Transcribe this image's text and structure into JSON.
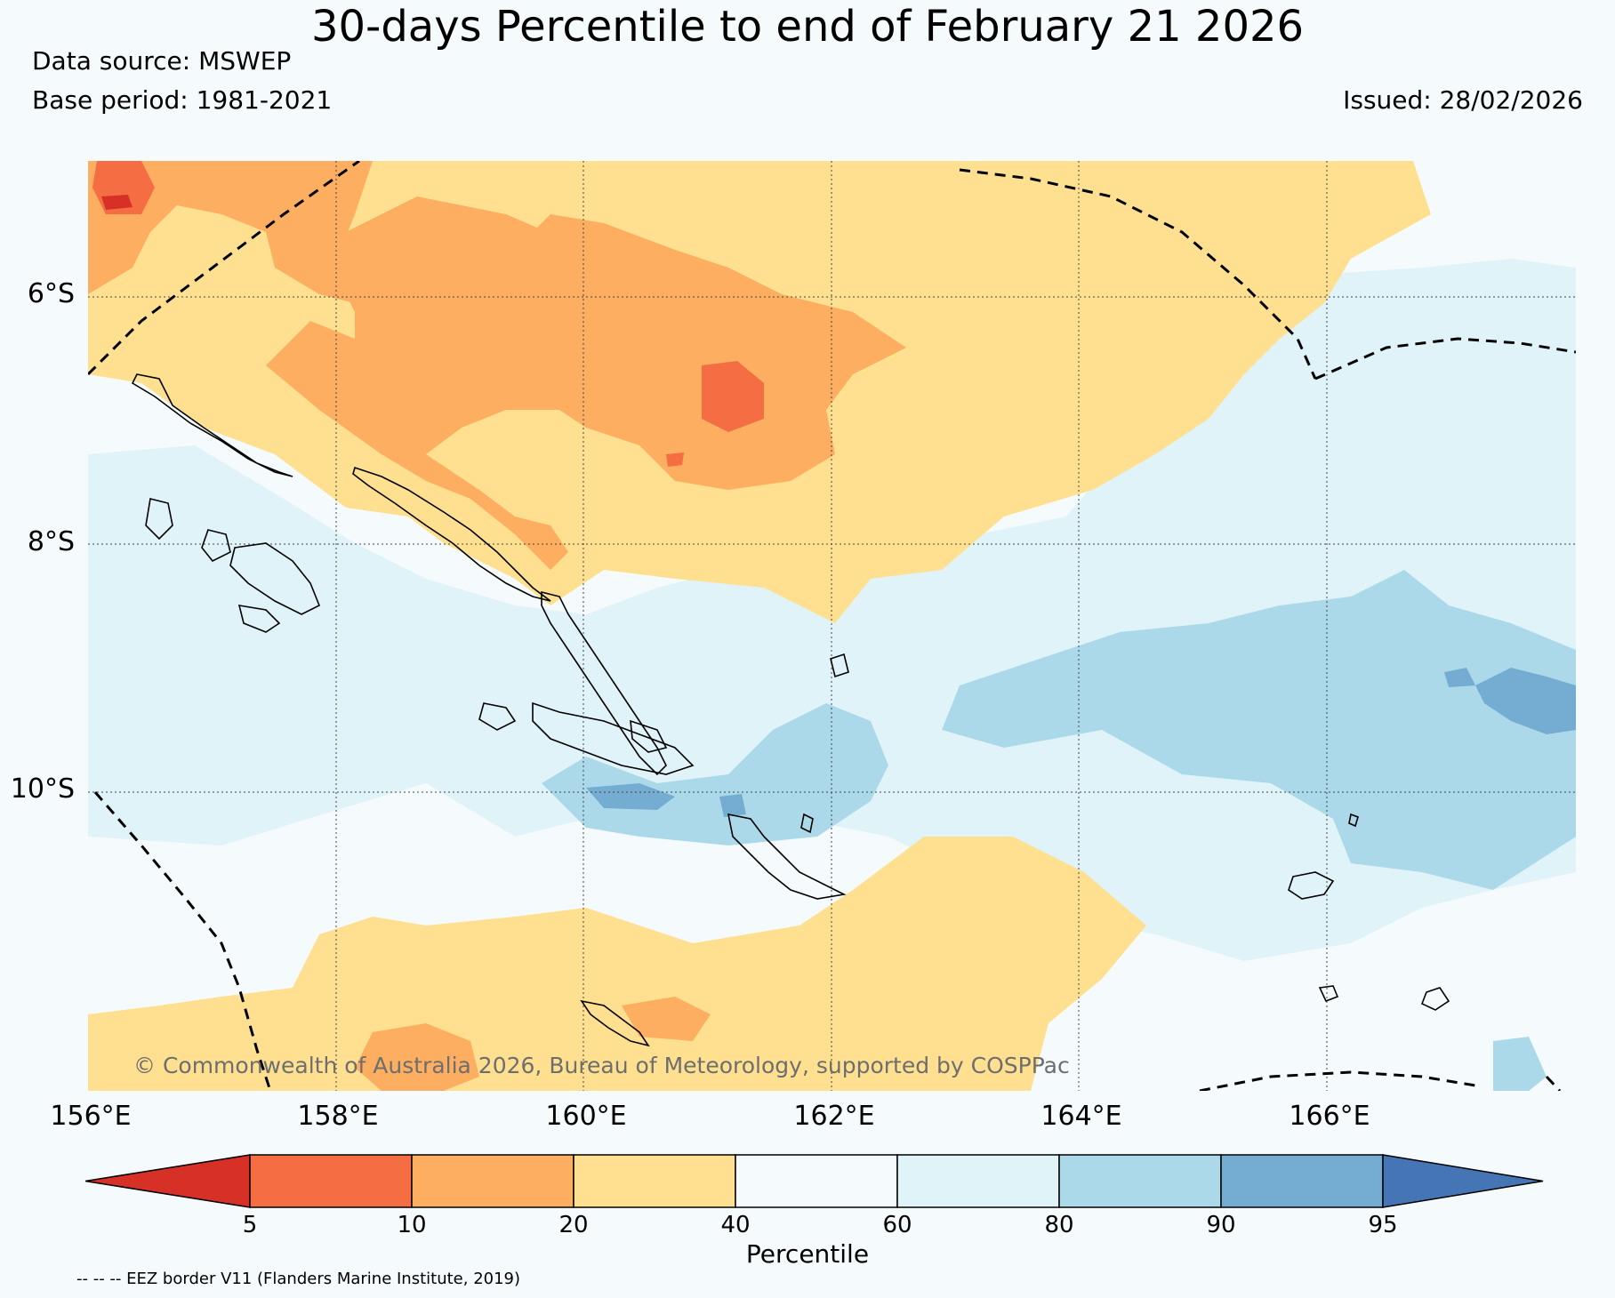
{
  "title": "30-days Percentile to end of February 21 2026",
  "data_source": "Data source: MSWEP",
  "base_period": "Base period: 1981-2021",
  "issued": "Issued: 28/02/2026",
  "lat_labels": [
    "6°S",
    "8°S",
    "10°S"
  ],
  "lon_labels": [
    "156°E",
    "158°E",
    "160°E",
    "162°E",
    "164°E",
    "166°E"
  ],
  "credit": "© Commonwealth of Australia 2026, Bureau of Meteorology, supported by COSPPac",
  "colorbar": {
    "label": "Percentile",
    "ticks": [
      "5",
      "10",
      "20",
      "40",
      "60",
      "80",
      "90",
      "95"
    ],
    "colors": [
      "#d73027",
      "#f46d43",
      "#fdae61",
      "#fee090",
      "#f5fbfc",
      "#e0f3f8",
      "#abd9e9",
      "#74add1",
      "#4575b4"
    ]
  },
  "eez_note": "-- -- -- EEZ border V11 (Flanders Marine Institute, 2019)"
}
